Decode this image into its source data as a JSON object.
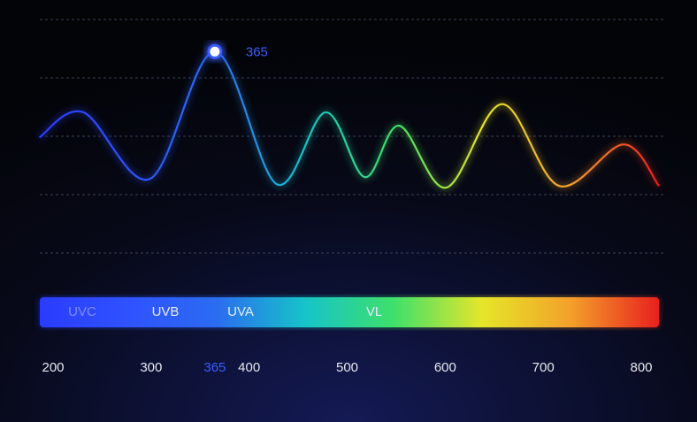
{
  "chart_data": {
    "type": "line",
    "x": [
      186,
      231,
      299,
      365,
      428,
      478,
      518,
      553,
      601,
      658,
      716,
      782,
      818
    ],
    "values": [
      1.98,
      2.41,
      1.27,
      3.45,
      1.18,
      2.41,
      1.3,
      2.18,
      1.12,
      2.55,
      1.15,
      1.86,
      1.15
    ],
    "xlim": [
      200,
      800
    ],
    "ylim": [
      0,
      4
    ],
    "xticks": [
      200,
      300,
      365,
      400,
      500,
      600,
      700,
      800
    ],
    "gradient": [
      "#2a3cff",
      "#2f52ff",
      "#2b6cf0",
      "#16c4c8",
      "#3ee06a",
      "#e6e62a",
      "#f4a02a",
      "#e8201e"
    ],
    "band_labels": [
      "UVC",
      "UVB",
      "UVA",
      "VL"
    ],
    "highlight_color": "#3a5cff"
  }
}
